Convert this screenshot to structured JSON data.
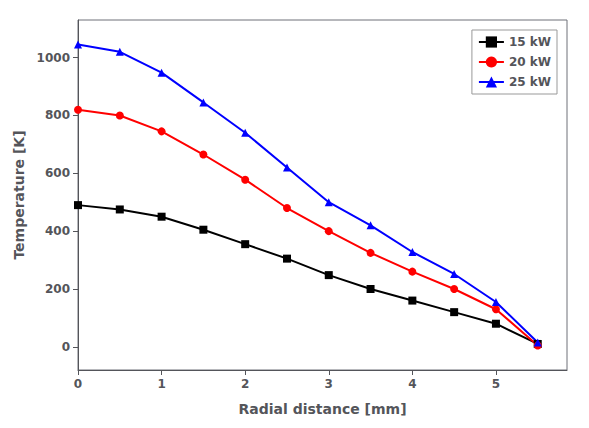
{
  "chart_data": {
    "type": "line",
    "xlabel": "Radial distance [mm]",
    "ylabel": "Temperature [K]",
    "xlim": [
      0,
      5.85
    ],
    "ylim": [
      -80,
      1130
    ],
    "xticks": [
      0,
      1,
      2,
      3,
      4,
      5
    ],
    "yticks": [
      0,
      200,
      400,
      600,
      800,
      1000
    ],
    "grid": false,
    "legend": "upper right",
    "x": [
      0,
      0.5,
      1.0,
      1.5,
      2.0,
      2.5,
      3.0,
      3.5,
      4.0,
      4.5,
      5.0,
      5.5
    ],
    "series": [
      {
        "name": "15 kW",
        "color": "black",
        "marker": "square",
        "values": [
          490,
          475,
          450,
          405,
          355,
          305,
          248,
          200,
          160,
          120,
          80,
          10
        ]
      },
      {
        "name": "20 kW",
        "color": "red",
        "marker": "circle",
        "values": [
          820,
          800,
          745,
          665,
          578,
          480,
          400,
          325,
          260,
          200,
          130,
          5
        ]
      },
      {
        "name": "25 kW",
        "color": "blue",
        "marker": "triangle",
        "values": [
          1045,
          1020,
          948,
          845,
          740,
          620,
          500,
          420,
          328,
          252,
          155,
          15
        ]
      }
    ]
  }
}
